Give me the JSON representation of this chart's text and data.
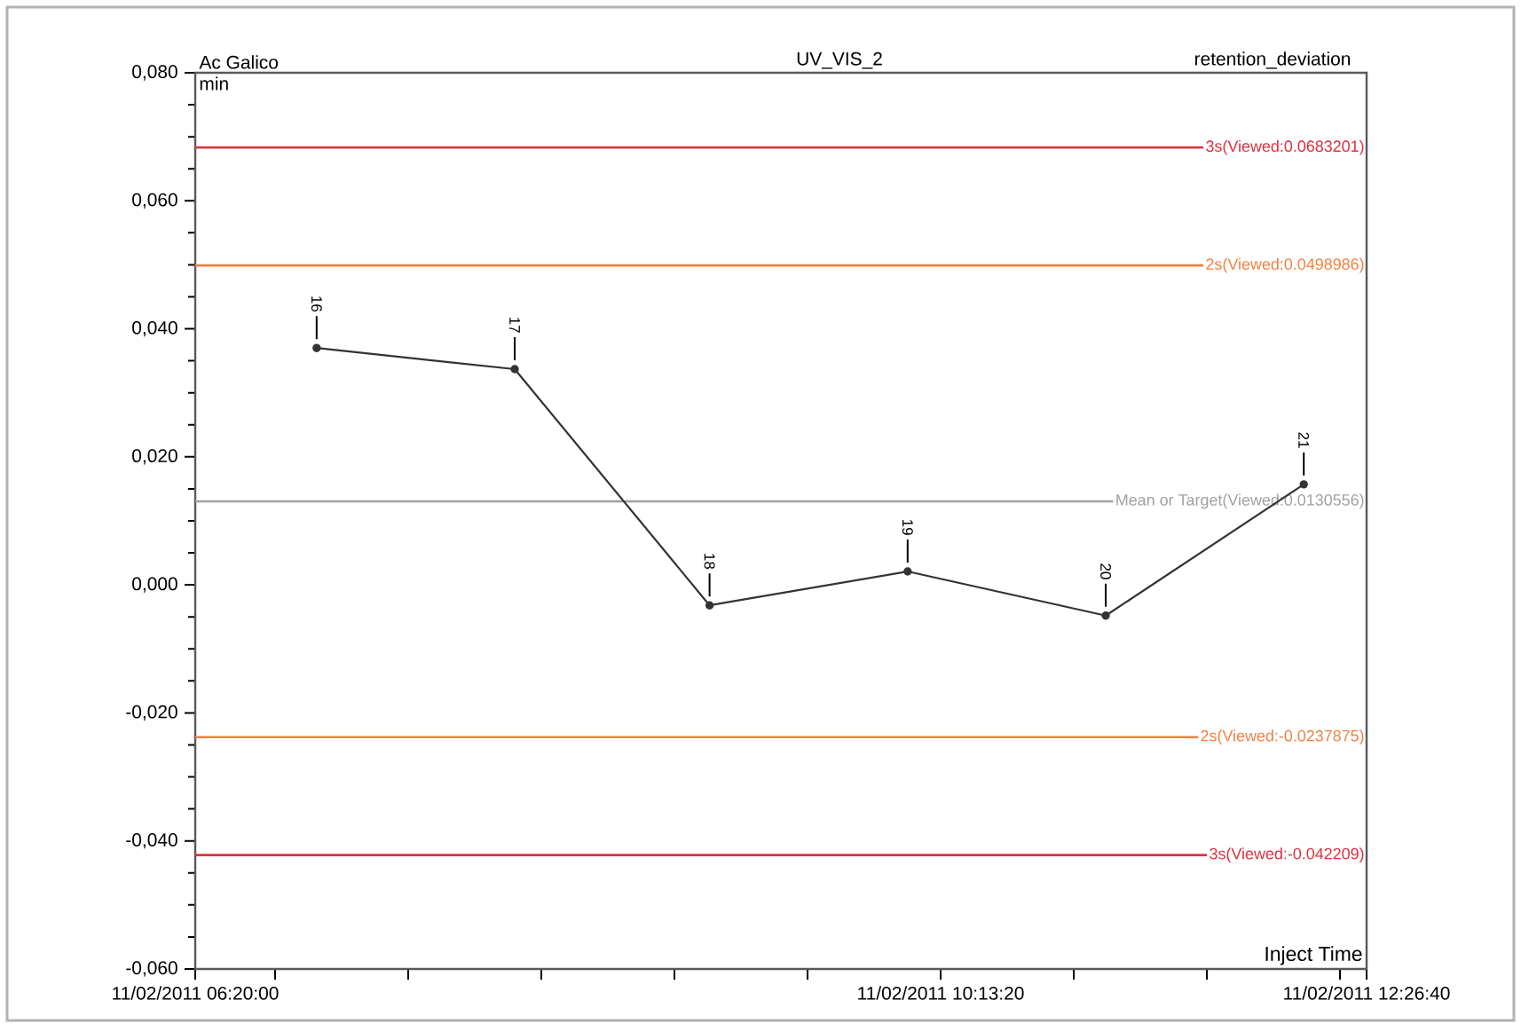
{
  "chart_data": {
    "type": "line",
    "title": "UV_VIS_2",
    "xlabel": "Inject Time",
    "ylabel": "min",
    "x": [
      "2011-02-11T06:58",
      "2011-02-11T08:00",
      "2011-02-11T09:01",
      "2011-02-11T10:03",
      "2011-02-11T11:05",
      "2011-02-11T12:07"
    ],
    "values": [
      0.037,
      0.0337,
      -0.0032,
      0.0021,
      -0.0048,
      0.0157
    ],
    "color": "#333333",
    "marker": "circle",
    "line_style": "solid",
    "xlim": [
      "2011-02-11T06:20:00",
      "2011-02-11T12:26:40"
    ],
    "xticks": [
      {
        "value": "2011-02-11T06:20:00",
        "label": "11/02/2011 06:20:00"
      },
      {
        "value": "2011-02-11T06:45:00",
        "label": null
      },
      {
        "value": "2011-02-11T07:26:40",
        "label": null
      },
      {
        "value": "2011-02-11T08:08:20",
        "label": null
      },
      {
        "value": "2011-02-11T08:50:00",
        "label": null
      },
      {
        "value": "2011-02-11T09:31:40",
        "label": null
      },
      {
        "value": "2011-02-11T10:13:20",
        "label": "11/02/2011 10:13:20"
      },
      {
        "value": "2011-02-11T10:55:00",
        "label": null
      },
      {
        "value": "2011-02-11T11:36:40",
        "label": null
      },
      {
        "value": "2011-02-11T12:18:20",
        "label": null
      },
      {
        "value": "2011-02-11T12:26:40",
        "label": "11/02/2011 12:26:40"
      }
    ],
    "ylim": [
      -0.06,
      0.08
    ],
    "yticks": [
      {
        "value": -0.06,
        "label": "-0,060"
      },
      {
        "value": -0.04,
        "label": "-0,040"
      },
      {
        "value": -0.02,
        "label": "-0,020"
      },
      {
        "value": 0.0,
        "label": "0,000"
      },
      {
        "value": 0.02,
        "label": "0,020"
      },
      {
        "value": 0.04,
        "label": "0,040"
      },
      {
        "value": 0.06,
        "label": "0,060"
      },
      {
        "value": 0.08,
        "label": "0,080"
      }
    ],
    "ref_lines": [
      {
        "axis": "y",
        "value": 0.0683201,
        "label": "3s(Viewed:0.0683201)",
        "color": "#e03040"
      },
      {
        "axis": "y",
        "value": 0.0498986,
        "label": "2s(Viewed:0.0498986)",
        "color": "#f08040"
      },
      {
        "axis": "y",
        "value": 0.0130556,
        "label": "Mean or Target(Viewed:0.0130556)",
        "color": "#a0a0a0"
      },
      {
        "axis": "y",
        "value": -0.0237875,
        "label": "2s(Viewed:-0.0237875)",
        "color": "#f08040"
      },
      {
        "axis": "y",
        "value": -0.042209,
        "label": "3s(Viewed:-0.042209)",
        "color": "#e03040"
      }
    ],
    "annotations": [
      "Ac Galico",
      "retention_deviation",
      {
        "text": "16",
        "x": "2011-02-11T06:58",
        "y": 0.037
      },
      {
        "text": "17",
        "x": "2011-02-11T08:00",
        "y": 0.0337
      },
      {
        "text": "18",
        "x": "2011-02-11T09:01",
        "y": -0.0032
      },
      {
        "text": "19",
        "x": "2011-02-11T10:03",
        "y": 0.0021
      },
      {
        "text": "20",
        "x": "2011-02-11T11:05",
        "y": -0.0048
      },
      {
        "text": "21",
        "x": "2011-02-11T12:07",
        "y": 0.0157
      }
    ]
  }
}
